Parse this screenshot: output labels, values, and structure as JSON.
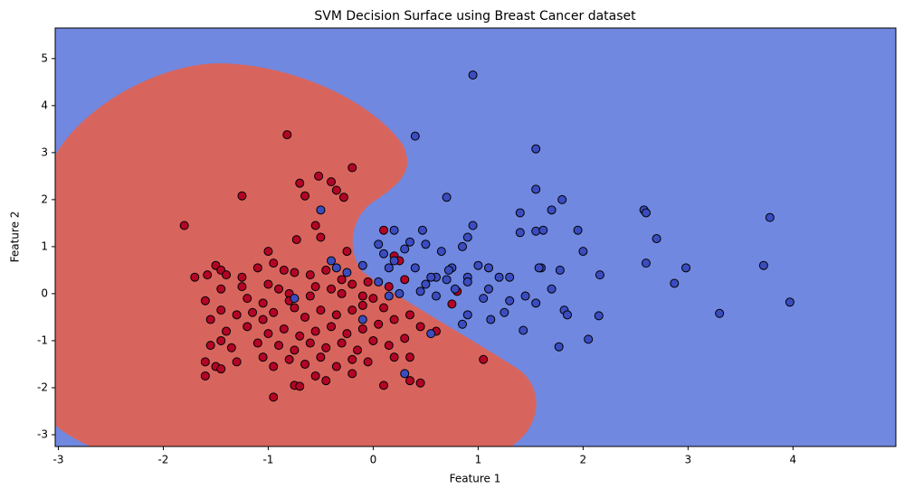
{
  "chart_data": {
    "type": "scatter",
    "title": "SVM Decision Surface using Breast Cancer dataset",
    "x_label": "Feature 1",
    "y_label": "Feature 2",
    "xlim": [
      -3.03,
      4.98
    ],
    "ylim": [
      -3.25,
      5.65
    ],
    "xticks": [
      -3,
      -2,
      -1,
      0,
      1,
      2,
      3,
      4
    ],
    "yticks": [
      -3,
      -2,
      -1,
      0,
      1,
      2,
      3,
      4,
      5
    ],
    "series": [
      {
        "color": "#b40426",
        "x": [
          -1.8,
          -0.82,
          -0.7,
          -0.52,
          -0.65,
          -0.4,
          -0.35,
          -0.2,
          -0.28,
          -1.25,
          -0.55,
          -0.5,
          -0.73,
          -1.0,
          -0.25,
          -1.7,
          -1.58,
          -1.5,
          -1.45,
          -1.4,
          -1.25,
          -1.1,
          -0.95,
          -0.85,
          -0.75,
          -0.6,
          -0.45,
          -1.45,
          -1.25,
          -1.0,
          -0.9,
          -0.8,
          -0.6,
          -0.4,
          -0.3,
          -0.2,
          -1.6,
          -1.45,
          -1.3,
          -1.15,
          -1.05,
          -0.95,
          -0.75,
          -0.65,
          -0.5,
          -0.35,
          -0.2,
          -0.1,
          0.0,
          0.1,
          -1.55,
          -1.4,
          -1.2,
          -1.0,
          -0.85,
          -0.7,
          -0.55,
          -0.4,
          -0.25,
          -0.1,
          0.05,
          0.2,
          0.35,
          -1.55,
          -1.45,
          -1.35,
          -1.1,
          -0.9,
          -0.75,
          -0.6,
          -0.45,
          -0.3,
          -0.15,
          0.0,
          0.15,
          0.3,
          0.45,
          0.6,
          -1.6,
          -1.5,
          -1.3,
          -1.05,
          -0.95,
          -0.8,
          -0.65,
          -0.5,
          -0.35,
          -0.2,
          -0.05,
          0.2,
          0.35,
          1.05,
          -1.6,
          -1.45,
          -0.55,
          -0.2,
          -0.45,
          -0.75,
          -0.7,
          -0.95,
          0.1,
          0.45,
          0.35,
          0.2,
          0.25,
          0.1,
          0.75,
          0.8,
          -0.05,
          -0.1,
          -0.3,
          -0.55,
          -0.8,
          -1.05,
          -1.2,
          0.15,
          0.3
        ],
        "values": [
          1.45,
          3.38,
          2.35,
          2.5,
          2.08,
          2.38,
          2.2,
          2.68,
          2.05,
          2.08,
          1.45,
          1.2,
          1.15,
          0.9,
          0.9,
          0.35,
          0.4,
          0.6,
          0.5,
          0.4,
          0.35,
          0.55,
          0.65,
          0.5,
          0.45,
          0.4,
          0.5,
          0.1,
          0.15,
          0.2,
          0.1,
          0.0,
          -0.05,
          0.1,
          0.0,
          0.2,
          -0.15,
          -0.35,
          -0.45,
          -0.4,
          -0.55,
          -0.4,
          -0.3,
          -0.5,
          -0.35,
          -0.45,
          -0.35,
          -0.25,
          -0.1,
          -0.3,
          -0.55,
          -0.8,
          -0.7,
          -0.85,
          -0.75,
          -0.9,
          -0.8,
          -0.7,
          -0.85,
          -0.75,
          -0.65,
          -0.55,
          -0.45,
          -1.1,
          -1.0,
          -1.15,
          -1.05,
          -1.1,
          -1.2,
          -1.05,
          -1.15,
          -1.05,
          -1.2,
          -1.0,
          -1.1,
          -0.95,
          -0.7,
          -0.8,
          -1.45,
          -1.55,
          -1.45,
          -1.35,
          -1.55,
          -1.4,
          -1.5,
          -1.35,
          -1.55,
          -1.4,
          -1.45,
          -1.35,
          -1.35,
          -1.4,
          -1.75,
          -1.6,
          -1.75,
          -1.7,
          -1.85,
          -1.95,
          -1.97,
          -2.2,
          -1.95,
          -1.9,
          -1.85,
          0.8,
          0.7,
          1.35,
          -0.22,
          0.05,
          0.25,
          -0.05,
          0.3,
          0.15,
          -0.15,
          -0.2,
          -0.1,
          0.15,
          0.3
        ]
      },
      {
        "color": "#3b4cc0",
        "x": [
          0.95,
          0.4,
          1.55,
          1.55,
          1.8,
          0.7,
          1.7,
          2.58,
          2.6,
          3.78,
          0.95,
          1.4,
          1.95,
          2.7,
          1.4,
          1.55,
          1.62,
          2.6,
          2.98,
          3.72,
          2.87,
          3.97,
          3.3,
          2.05,
          2.15,
          1.77,
          1.43,
          1.82,
          1.85,
          2.16,
          1.78,
          1.6,
          1.58,
          1.3,
          1.1,
          1.2,
          0.9,
          0.75,
          0.72,
          0.6,
          0.55,
          0.5,
          0.45,
          0.78,
          0.6,
          0.85,
          0.9,
          1.12,
          1.25,
          1.3,
          1.45,
          1.7,
          1.55,
          1.1,
          1.05,
          0.9,
          0.2,
          0.3,
          0.15,
          0.1,
          0.05,
          0.2,
          0.35,
          0.5,
          0.65,
          0.85,
          0.9,
          0.47,
          0.4,
          0.25,
          0.15,
          -0.1,
          -0.25,
          -0.35,
          -0.4,
          -0.5,
          -0.75,
          -0.1,
          0.3,
          0.55,
          0.7,
          1.0,
          2.0,
          0.05
        ],
        "values": [
          4.65,
          3.35,
          3.08,
          2.22,
          2.0,
          2.05,
          1.78,
          1.78,
          1.72,
          1.62,
          1.45,
          1.72,
          1.35,
          1.17,
          1.3,
          1.33,
          1.35,
          0.65,
          0.55,
          0.6,
          0.22,
          -0.18,
          -0.42,
          -0.97,
          -0.47,
          -1.13,
          -0.78,
          -0.35,
          -0.45,
          0.4,
          0.5,
          0.55,
          0.55,
          0.35,
          0.55,
          0.35,
          0.35,
          0.55,
          0.5,
          0.35,
          0.35,
          0.2,
          0.05,
          0.1,
          -0.05,
          -0.65,
          -0.45,
          -0.55,
          -0.4,
          -0.15,
          -0.05,
          0.1,
          -0.2,
          0.1,
          -0.1,
          0.25,
          0.7,
          0.95,
          0.55,
          0.85,
          1.05,
          1.35,
          1.1,
          1.05,
          0.9,
          1.0,
          1.2,
          1.35,
          0.55,
          0.0,
          -0.05,
          0.6,
          0.45,
          0.55,
          0.7,
          1.78,
          -0.1,
          -0.55,
          -1.7,
          -0.85,
          0.3,
          0.6,
          0.9,
          0.25
        ]
      }
    ]
  }
}
